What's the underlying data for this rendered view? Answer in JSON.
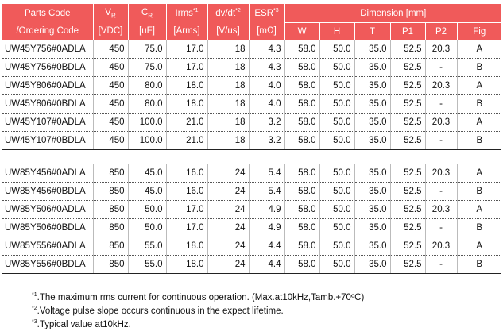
{
  "headers": {
    "parts_code": "Parts Code",
    "ordering_code": "/Ordering Code",
    "vr_base": "V",
    "vr_sub": "R",
    "vr_unit": "[VDC]",
    "cr_base": "C",
    "cr_sub": "R",
    "cr_unit": "[uF]",
    "irms": "Irms",
    "irms_sup": "*1",
    "irms_unit": "[Arms]",
    "dvdt": "dv/dt",
    "dvdt_sup": "*2",
    "dvdt_unit": "[V/us]",
    "esr": "ESR",
    "esr_sup": "*3",
    "esr_unit": "[mΩ]",
    "dimension": "Dimension [mm]",
    "w": "W",
    "h": "H",
    "t": "T",
    "p1": "P1",
    "p2": "P2",
    "fig": "Fig"
  },
  "group1": [
    [
      "UW45Y756#0ADLA",
      "450",
      "75.0",
      "17.0",
      "18",
      "4.3",
      "58.0",
      "50.0",
      "35.0",
      "52.5",
      "20.3",
      "A"
    ],
    [
      "UW45Y756#0BDLA",
      "450",
      "75.0",
      "17.0",
      "18",
      "4.3",
      "58.0",
      "50.0",
      "35.0",
      "52.5",
      "-",
      "B"
    ],
    [
      "UW45Y806#0ADLA",
      "450",
      "80.0",
      "18.0",
      "18",
      "4.0",
      "58.0",
      "50.0",
      "35.0",
      "52.5",
      "20.3",
      "A"
    ],
    [
      "UW45Y806#0BDLA",
      "450",
      "80.0",
      "18.0",
      "18",
      "4.0",
      "58.0",
      "50.0",
      "35.0",
      "52.5",
      "-",
      "B"
    ],
    [
      "UW45Y107#0ADLA",
      "450",
      "100.0",
      "21.0",
      "18",
      "3.2",
      "58.0",
      "50.0",
      "35.0",
      "52.5",
      "20.3",
      "A"
    ],
    [
      "UW45Y107#0BDLA",
      "450",
      "100.0",
      "21.0",
      "18",
      "3.2",
      "58.0",
      "50.0",
      "35.0",
      "52.5",
      "-",
      "B"
    ]
  ],
  "group2": [
    [
      "UW85Y456#0ADLA",
      "850",
      "45.0",
      "16.0",
      "24",
      "5.4",
      "58.0",
      "50.0",
      "35.0",
      "52.5",
      "20.3",
      "A"
    ],
    [
      "UW85Y456#0BDLA",
      "850",
      "45.0",
      "16.0",
      "24",
      "5.4",
      "58.0",
      "50.0",
      "35.0",
      "52.5",
      "-",
      "B"
    ],
    [
      "UW85Y506#0ADLA",
      "850",
      "50.0",
      "17.0",
      "24",
      "4.9",
      "58.0",
      "50.0",
      "35.0",
      "52.5",
      "20.3",
      "A"
    ],
    [
      "UW85Y506#0BDLA",
      "850",
      "50.0",
      "17.0",
      "24",
      "4.9",
      "58.0",
      "50.0",
      "35.0",
      "52.5",
      "-",
      "B"
    ],
    [
      "UW85Y556#0ADLA",
      "850",
      "55.0",
      "18.0",
      "24",
      "4.4",
      "58.0",
      "50.0",
      "35.0",
      "52.5",
      "20.3",
      "A"
    ],
    [
      "UW85Y556#0BDLA",
      "850",
      "55.0",
      "18.0",
      "24",
      "4.4",
      "58.0",
      "50.0",
      "35.0",
      "52.5",
      "-",
      "B"
    ]
  ],
  "notes": [
    {
      "mark": "*1",
      "text": ".The maximum rms current for continuous operation.  (Max.at10kHz,Tamb.+70ºC)"
    },
    {
      "mark": "*2",
      "text": ".Voltage pulse slope occurs continuous in the expect lifetime."
    },
    {
      "mark": "*3",
      "text": ".Typical  value at10kHz."
    }
  ]
}
